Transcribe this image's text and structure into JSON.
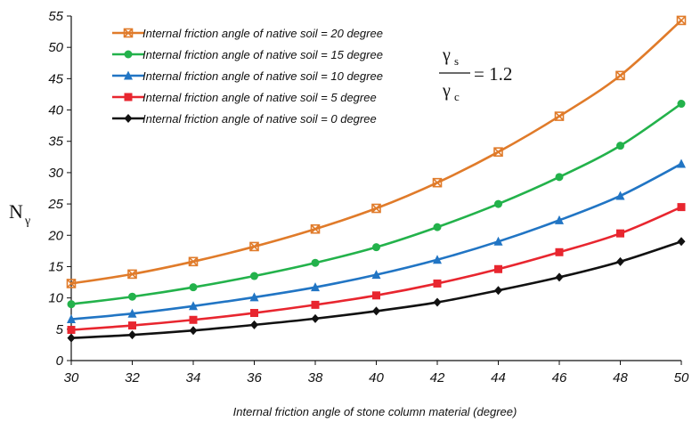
{
  "chart_data": {
    "type": "line",
    "xlabel": "Internal friction angle of stone column material (degree)",
    "ylabel_main": "N",
    "ylabel_sub": "γ",
    "xlim": [
      30,
      50
    ],
    "ylim": [
      0,
      55
    ],
    "x_ticks": [
      30,
      32,
      34,
      36,
      38,
      40,
      42,
      44,
      46,
      48,
      50
    ],
    "y_ticks": [
      0,
      5,
      10,
      15,
      20,
      25,
      30,
      35,
      40,
      45,
      50,
      55
    ],
    "grid": false,
    "legend_position": "top-left",
    "annotation": {
      "numerator": "γ",
      "numerator_sub": "s",
      "denominator": "γ",
      "denominator_sub": "c",
      "equals": "= 1.2"
    },
    "x": [
      30,
      32,
      34,
      36,
      38,
      40,
      42,
      44,
      46,
      48,
      50
    ],
    "series": [
      {
        "name": "Internal friction angle of native soil = 20 degree",
        "color": "#e07b2a",
        "marker": "x-square",
        "values": [
          12.3,
          13.8,
          15.8,
          18.2,
          21.0,
          24.3,
          28.4,
          33.3,
          39.0,
          45.5,
          54.3
        ]
      },
      {
        "name": "Internal friction angle of native soil = 15 degree",
        "color": "#23b24b",
        "marker": "circle",
        "values": [
          9.0,
          10.2,
          11.7,
          13.5,
          15.6,
          18.1,
          21.3,
          25.0,
          29.3,
          34.3,
          41.0
        ]
      },
      {
        "name": "Internal friction angle of native soil = 10 degree",
        "color": "#2175c4",
        "marker": "triangle",
        "values": [
          6.6,
          7.5,
          8.7,
          10.1,
          11.7,
          13.7,
          16.1,
          19.0,
          22.4,
          26.3,
          31.4
        ]
      },
      {
        "name": "Internal friction angle of native soil =  5 degree",
        "color": "#e8262f",
        "marker": "square",
        "values": [
          4.9,
          5.6,
          6.5,
          7.6,
          8.9,
          10.4,
          12.3,
          14.6,
          17.3,
          20.3,
          24.5
        ]
      },
      {
        "name": "Internal friction angle of native soil =  0 degree",
        "color": "#111111",
        "marker": "diamond",
        "values": [
          3.6,
          4.1,
          4.8,
          5.7,
          6.7,
          7.9,
          9.3,
          11.2,
          13.3,
          15.8,
          19.0
        ]
      }
    ]
  }
}
